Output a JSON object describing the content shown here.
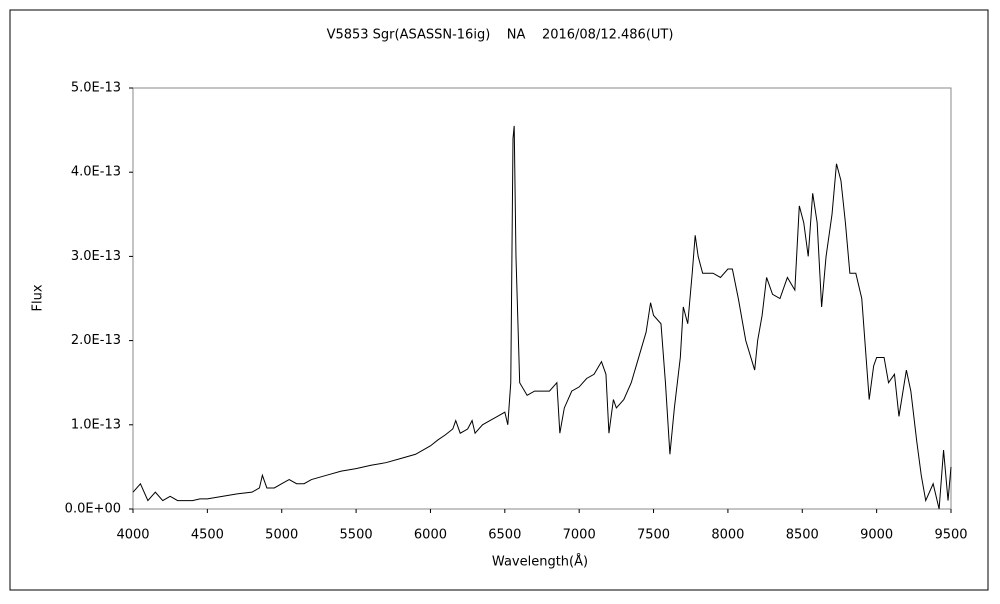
{
  "chart_data": {
    "type": "line",
    "title": "V5853 Sgr(ASASSN-16ig)    NA    2016/08/12.486(UT)",
    "x_label": "Wavelength(Å)",
    "y_label": "Flux",
    "color": "#000000",
    "grid": false,
    "xlim": [
      4000,
      9500
    ],
    "xticks": [
      4000,
      4500,
      5000,
      5500,
      6000,
      6500,
      7000,
      7500,
      8000,
      8500,
      9000,
      9500
    ],
    "ylim": [
      0,
      5e-13
    ],
    "yticks": [
      {
        "value": 0,
        "label": "0.0E+00"
      },
      {
        "value": 1e-13,
        "label": "1.0E-13"
      },
      {
        "value": 2e-13,
        "label": "2.0E-13"
      },
      {
        "value": 3e-13,
        "label": "3.0E-13"
      },
      {
        "value": 4e-13,
        "label": "4.0E-13"
      },
      {
        "value": 5e-13,
        "label": "5.0E-13"
      }
    ],
    "x": [
      4000,
      4050,
      4100,
      4150,
      4200,
      4250,
      4300,
      4350,
      4400,
      4450,
      4500,
      4600,
      4700,
      4800,
      4850,
      4870,
      4900,
      4950,
      5000,
      5050,
      5100,
      5150,
      5200,
      5300,
      5400,
      5500,
      5600,
      5700,
      5800,
      5900,
      5950,
      6000,
      6050,
      6100,
      6150,
      6170,
      6200,
      6250,
      6280,
      6300,
      6350,
      6400,
      6450,
      6500,
      6520,
      6540,
      6555,
      6563,
      6575,
      6600,
      6650,
      6700,
      6750,
      6800,
      6850,
      6870,
      6900,
      6950,
      7000,
      7050,
      7100,
      7150,
      7180,
      7200,
      7230,
      7250,
      7300,
      7350,
      7400,
      7450,
      7480,
      7500,
      7550,
      7580,
      7610,
      7640,
      7680,
      7700,
      7730,
      7760,
      7780,
      7800,
      7830,
      7900,
      7950,
      8000,
      8030,
      8070,
      8120,
      8180,
      8200,
      8230,
      8260,
      8300,
      8350,
      8400,
      8450,
      8480,
      8510,
      8540,
      8570,
      8600,
      8630,
      8660,
      8700,
      8730,
      8760,
      8790,
      8820,
      8860,
      8900,
      8950,
      8980,
      9000,
      9050,
      9080,
      9120,
      9150,
      9200,
      9230,
      9270,
      9300,
      9330,
      9380,
      9420,
      9450,
      9480,
      9500
    ],
    "values": [
      2e-14,
      3e-14,
      1e-14,
      2e-14,
      1e-14,
      1.5e-14,
      1e-14,
      1e-14,
      1e-14,
      1.2e-14,
      1.2e-14,
      1.5e-14,
      1.8e-14,
      2e-14,
      2.5e-14,
      4e-14,
      2.5e-14,
      2.5e-14,
      3e-14,
      3.5e-14,
      3e-14,
      3e-14,
      3.5e-14,
      4e-14,
      4.5e-14,
      4.8e-14,
      5.2e-14,
      5.5e-14,
      6e-14,
      6.5e-14,
      7e-14,
      7.5e-14,
      8.2e-14,
      8.8e-14,
      9.5e-14,
      1.05e-13,
      9e-14,
      9.5e-14,
      1.05e-13,
      9e-14,
      1e-13,
      1.05e-13,
      1.1e-13,
      1.15e-13,
      1e-13,
      1.5e-13,
      4.4e-13,
      4.55e-13,
      3e-13,
      1.5e-13,
      1.35e-13,
      1.4e-13,
      1.4e-13,
      1.4e-13,
      1.5e-13,
      9e-14,
      1.2e-13,
      1.4e-13,
      1.45e-13,
      1.55e-13,
      1.6e-13,
      1.75e-13,
      1.6e-13,
      9e-14,
      1.3e-13,
      1.2e-13,
      1.3e-13,
      1.5e-13,
      1.8e-13,
      2.1e-13,
      2.45e-13,
      2.3e-13,
      2.2e-13,
      1.5e-13,
      6.5e-14,
      1.2e-13,
      1.8e-13,
      2.4e-13,
      2.2e-13,
      2.8e-13,
      3.25e-13,
      3e-13,
      2.8e-13,
      2.8e-13,
      2.75e-13,
      2.85e-13,
      2.85e-13,
      2.5e-13,
      2e-13,
      1.65e-13,
      2e-13,
      2.3e-13,
      2.75e-13,
      2.55e-13,
      2.5e-13,
      2.75e-13,
      2.6e-13,
      3.6e-13,
      3.4e-13,
      3e-13,
      3.75e-13,
      3.4e-13,
      2.4e-13,
      3e-13,
      3.5e-13,
      4.1e-13,
      3.9e-13,
      3.4e-13,
      2.8e-13,
      2.8e-13,
      2.5e-13,
      1.3e-13,
      1.7e-13,
      1.8e-13,
      1.8e-13,
      1.5e-13,
      1.6e-13,
      1.1e-13,
      1.65e-13,
      1.4e-13,
      8e-14,
      4e-14,
      1e-14,
      3e-14,
      0,
      7e-14,
      1e-14,
      5e-14
    ]
  }
}
